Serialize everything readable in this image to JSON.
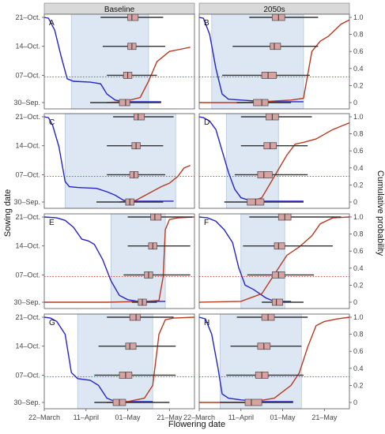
{
  "figure": {
    "xlabel": "Flowering date",
    "ylabel_left": "Sowing date",
    "ylabel_right": "Cumulative probability",
    "column_titles": [
      "Baseline",
      "2050s"
    ],
    "x_ticks": [
      "22–March",
      "11–April",
      "01–May",
      "21–May"
    ],
    "y_ticks_left": [
      "30–Sep.",
      "07–Oct.",
      "14–Oct.",
      "21–Oct."
    ],
    "y_ticks_right": [
      "0",
      "0.2",
      "0.4",
      "0.6",
      "0.8",
      "1.0"
    ],
    "colors": {
      "shade": "#dde7f3",
      "shade_border": "#b7c7dd",
      "decline": "#2424c8",
      "rise": "#b83a20",
      "threshold": "#cc3a2a",
      "box_fill": "#d7a2a2",
      "whisker": "#333333",
      "strip": "#d9d9d9"
    }
  },
  "chart_data": [
    {
      "type": "box+line",
      "panel": "A",
      "column": "Baseline",
      "x_unit": "days after 22 March",
      "shade": [
        13,
        50
      ],
      "threshold_y": 0.3,
      "boxes": [
        {
          "sowing": "21–Oct.",
          "whisker": [
            27,
            57
          ],
          "q1": 40,
          "median": 42,
          "q3": 45
        },
        {
          "sowing": "14–Oct.",
          "whisker": [
            28,
            58
          ],
          "q1": 40,
          "median": 42,
          "q3": 44
        },
        {
          "sowing": "07–Oct.",
          "whisker": [
            30,
            54
          ],
          "q1": 38,
          "median": 40,
          "q3": 42
        },
        {
          "sowing": "30–Sep.",
          "whisker": [
            22,
            56
          ],
          "q1": 36,
          "median": 39,
          "q3": 41
        }
      ],
      "decline": [
        [
          0,
          1.0
        ],
        [
          2,
          0.99
        ],
        [
          5,
          0.85
        ],
        [
          8,
          0.55
        ],
        [
          11,
          0.28
        ],
        [
          14,
          0.25
        ],
        [
          22,
          0.24
        ],
        [
          27,
          0.22
        ],
        [
          30,
          0.1
        ],
        [
          34,
          0.03
        ],
        [
          38,
          0.01
        ],
        [
          56,
          0.01
        ]
      ],
      "rise": [
        [
          30,
          0
        ],
        [
          38,
          0.01
        ],
        [
          46,
          0.06
        ],
        [
          50,
          0.25
        ],
        [
          54,
          0.48
        ],
        [
          60,
          0.6
        ],
        [
          66,
          0.63
        ],
        [
          70,
          0.65
        ]
      ]
    },
    {
      "type": "box+line",
      "panel": "B",
      "column": "2050s",
      "x_unit": "days after 22 March",
      "shade": [
        6,
        50
      ],
      "threshold_y": 0.3,
      "boxes": [
        {
          "sowing": "21–Oct.",
          "whisker": [
            24,
            57
          ],
          "q1": 35,
          "median": 38,
          "q3": 41
        },
        {
          "sowing": "14–Oct.",
          "whisker": [
            16,
            57
          ],
          "q1": 34,
          "median": 36,
          "q3": 39
        },
        {
          "sowing": "07–Oct.",
          "whisker": [
            11,
            53
          ],
          "q1": 30,
          "median": 33,
          "q3": 37
        },
        {
          "sowing": "30–Sep.",
          "whisker": [
            18,
            44
          ],
          "q1": 26,
          "median": 30,
          "q3": 33
        }
      ],
      "decline": [
        [
          0,
          1.0
        ],
        [
          2,
          0.99
        ],
        [
          5,
          0.8
        ],
        [
          8,
          0.4
        ],
        [
          11,
          0.1
        ],
        [
          14,
          0.04
        ],
        [
          20,
          0.03
        ],
        [
          26,
          0.02
        ],
        [
          32,
          0.01
        ],
        [
          50,
          0.01
        ]
      ],
      "rise": [
        [
          0,
          0
        ],
        [
          20,
          0
        ],
        [
          30,
          0.01
        ],
        [
          44,
          0.03
        ],
        [
          50,
          0.05
        ],
        [
          54,
          0.6
        ],
        [
          58,
          0.72
        ],
        [
          62,
          0.78
        ],
        [
          68,
          0.92
        ],
        [
          72,
          0.97
        ]
      ]
    },
    {
      "type": "box+line",
      "panel": "C",
      "column": "Baseline",
      "x_unit": "days after 22 March",
      "shade": [
        10,
        63
      ],
      "threshold_y": 0.3,
      "boxes": [
        {
          "sowing": "21–Oct.",
          "whisker": [
            33,
            62
          ],
          "q1": 43,
          "median": 45,
          "q3": 48
        },
        {
          "sowing": "14–Oct.",
          "whisker": [
            30,
            57
          ],
          "q1": 42,
          "median": 44,
          "q3": 46
        },
        {
          "sowing": "07–Oct.",
          "whisker": [
            30,
            58
          ],
          "q1": 41,
          "median": 43,
          "q3": 45
        },
        {
          "sowing": "30–Sep.",
          "whisker": [
            25,
            57
          ],
          "q1": 39,
          "median": 41,
          "q3": 43
        }
      ],
      "decline": [
        [
          0,
          1.0
        ],
        [
          2,
          0.99
        ],
        [
          4,
          0.9
        ],
        [
          7,
          0.65
        ],
        [
          10,
          0.24
        ],
        [
          12,
          0.18
        ],
        [
          16,
          0.17
        ],
        [
          25,
          0.16
        ],
        [
          30,
          0.12
        ],
        [
          34,
          0.08
        ],
        [
          38,
          0.02
        ],
        [
          42,
          0.01
        ],
        [
          62,
          0.01
        ]
      ],
      "rise": [
        [
          36,
          0
        ],
        [
          44,
          0.02
        ],
        [
          50,
          0.1
        ],
        [
          56,
          0.18
        ],
        [
          60,
          0.22
        ],
        [
          64,
          0.3
        ],
        [
          67,
          0.4
        ],
        [
          70,
          0.43
        ]
      ]
    },
    {
      "type": "box+line",
      "panel": "D",
      "column": "2050s",
      "x_unit": "days after 22 March",
      "shade": [
        13,
        38
      ],
      "threshold_y": 0.3,
      "boxes": [
        {
          "sowing": "21–Oct.",
          "whisker": [
            20,
            54
          ],
          "q1": 32,
          "median": 35,
          "q3": 38
        },
        {
          "sowing": "14–Oct.",
          "whisker": [
            20,
            52
          ],
          "q1": 31,
          "median": 34,
          "q3": 37
        },
        {
          "sowing": "07–Oct.",
          "whisker": [
            17,
            52
          ],
          "q1": 28,
          "median": 31,
          "q3": 35
        },
        {
          "sowing": "30–Sep.",
          "whisker": [
            12,
            50
          ],
          "q1": 23,
          "median": 27,
          "q3": 31
        }
      ],
      "decline": [
        [
          0,
          1.0
        ],
        [
          2,
          0.99
        ],
        [
          5,
          0.95
        ],
        [
          8,
          0.85
        ],
        [
          11,
          0.6
        ],
        [
          14,
          0.35
        ],
        [
          17,
          0.15
        ],
        [
          20,
          0.05
        ],
        [
          24,
          0.02
        ],
        [
          30,
          0.01
        ],
        [
          50,
          0.01
        ]
      ],
      "rise": [
        [
          24,
          0
        ],
        [
          30,
          0.05
        ],
        [
          36,
          0.3
        ],
        [
          42,
          0.55
        ],
        [
          46,
          0.68
        ],
        [
          50,
          0.7
        ],
        [
          56,
          0.74
        ],
        [
          64,
          0.85
        ],
        [
          72,
          0.93
        ]
      ]
    },
    {
      "type": "box+line",
      "panel": "E",
      "column": "Baseline",
      "x_unit": "days after 22 March",
      "shade": [
        32,
        58
      ],
      "threshold_y": 0.3,
      "boxes": [
        {
          "sowing": "21–Oct.",
          "whisker": [
            40,
            71
          ],
          "q1": 51,
          "median": 53,
          "q3": 56
        },
        {
          "sowing": "14–Oct.",
          "whisker": [
            40,
            70
          ],
          "q1": 50,
          "median": 52,
          "q3": 54
        },
        {
          "sowing": "07–Oct.",
          "whisker": [
            38,
            70
          ],
          "q1": 48,
          "median": 50,
          "q3": 52
        },
        {
          "sowing": "30–Sep.",
          "whisker": [
            42,
            54
          ],
          "q1": 45,
          "median": 47,
          "q3": 49
        }
      ],
      "decline": [
        [
          0,
          1.0
        ],
        [
          6,
          0.99
        ],
        [
          10,
          0.96
        ],
        [
          14,
          0.88
        ],
        [
          18,
          0.74
        ],
        [
          21,
          0.72
        ],
        [
          24,
          0.68
        ],
        [
          28,
          0.5
        ],
        [
          32,
          0.25
        ],
        [
          36,
          0.08
        ],
        [
          40,
          0.03
        ],
        [
          45,
          0.01
        ],
        [
          58,
          0.01
        ]
      ],
      "rise": [
        [
          0,
          0
        ],
        [
          30,
          0
        ],
        [
          48,
          0.01
        ],
        [
          55,
          0.02
        ],
        [
          57,
          0.3
        ],
        [
          58,
          0.85
        ],
        [
          60,
          0.97
        ],
        [
          64,
          0.99
        ],
        [
          72,
          1.0
        ]
      ]
    },
    {
      "type": "box+line",
      "panel": "F",
      "column": "2050s",
      "x_unit": "days after 22 March",
      "shade": [
        20,
        41
      ],
      "threshold_y": 0.3,
      "boxes": [
        {
          "sowing": "21–Oct.",
          "whisker": [
            24,
            68
          ],
          "q1": 38,
          "median": 41,
          "q3": 44
        },
        {
          "sowing": "14–Oct.",
          "whisker": [
            21,
            64
          ],
          "q1": 36,
          "median": 38,
          "q3": 41
        },
        {
          "sowing": "07–Oct.",
          "whisker": [
            23,
            55
          ],
          "q1": 35,
          "median": 38,
          "q3": 41
        },
        {
          "sowing": "30–Sep.",
          "whisker": [
            30,
            50
          ],
          "q1": 35,
          "median": 37,
          "q3": 40
        }
      ],
      "decline": [
        [
          0,
          1.0
        ],
        [
          4,
          0.99
        ],
        [
          8,
          0.95
        ],
        [
          12,
          0.85
        ],
        [
          16,
          0.7
        ],
        [
          19,
          0.4
        ],
        [
          22,
          0.2
        ],
        [
          26,
          0.15
        ],
        [
          32,
          0.05
        ],
        [
          36,
          0.01
        ],
        [
          44,
          0.01
        ]
      ],
      "rise": [
        [
          0,
          0
        ],
        [
          20,
          0.01
        ],
        [
          30,
          0.1
        ],
        [
          34,
          0.25
        ],
        [
          38,
          0.4
        ],
        [
          42,
          0.55
        ],
        [
          48,
          0.65
        ],
        [
          54,
          0.78
        ],
        [
          58,
          0.92
        ],
        [
          64,
          0.99
        ],
        [
          72,
          1.0
        ]
      ]
    },
    {
      "type": "box+line",
      "panel": "G",
      "column": "Baseline",
      "x_unit": "days after 22 March",
      "shade": [
        16,
        52
      ],
      "threshold_y": 0.3,
      "boxes": [
        {
          "sowing": "21–Oct.",
          "whisker": [
            30,
            62
          ],
          "q1": 41,
          "median": 44,
          "q3": 46
        },
        {
          "sowing": "14–Oct.",
          "whisker": [
            26,
            63
          ],
          "q1": 39,
          "median": 41,
          "q3": 44
        },
        {
          "sowing": "07–Oct.",
          "whisker": [
            24,
            63
          ],
          "q1": 36,
          "median": 39,
          "q3": 42
        },
        {
          "sowing": "30–Sep.",
          "whisker": [
            24,
            60
          ],
          "q1": 33,
          "median": 36,
          "q3": 39
        }
      ],
      "decline": [
        [
          0,
          1.0
        ],
        [
          3,
          0.99
        ],
        [
          6,
          0.95
        ],
        [
          10,
          0.8
        ],
        [
          13,
          0.35
        ],
        [
          16,
          0.28
        ],
        [
          22,
          0.26
        ],
        [
          26,
          0.2
        ],
        [
          30,
          0.05
        ],
        [
          34,
          0.01
        ],
        [
          52,
          0.01
        ]
      ],
      "rise": [
        [
          30,
          0
        ],
        [
          40,
          0.01
        ],
        [
          48,
          0.05
        ],
        [
          52,
          0.2
        ],
        [
          55,
          0.8
        ],
        [
          58,
          0.97
        ],
        [
          62,
          0.99
        ],
        [
          72,
          1.0
        ]
      ]
    },
    {
      "type": "box+line",
      "panel": "H",
      "column": "2050s",
      "x_unit": "days after 22 March",
      "shade": [
        10,
        49
      ],
      "threshold_y": 0.3,
      "boxes": [
        {
          "sowing": "21–Oct.",
          "whisker": [
            18,
            52
          ],
          "q1": 30,
          "median": 33,
          "q3": 36
        },
        {
          "sowing": "14–Oct.",
          "whisker": [
            15,
            49
          ],
          "q1": 28,
          "median": 31,
          "q3": 34
        },
        {
          "sowing": "07–Oct.",
          "whisker": [
            13,
            50
          ],
          "q1": 27,
          "median": 30,
          "q3": 33
        },
        {
          "sowing": "30–Sep.",
          "whisker": [
            10,
            45
          ],
          "q1": 22,
          "median": 25,
          "q3": 30
        }
      ],
      "decline": [
        [
          0,
          1.0
        ],
        [
          3,
          0.98
        ],
        [
          6,
          0.8
        ],
        [
          9,
          0.4
        ],
        [
          11,
          0.1
        ],
        [
          14,
          0.05
        ],
        [
          20,
          0.03
        ],
        [
          30,
          0.01
        ],
        [
          45,
          0.01
        ]
      ],
      "rise": [
        [
          0,
          0
        ],
        [
          24,
          0
        ],
        [
          36,
          0.05
        ],
        [
          44,
          0.2
        ],
        [
          48,
          0.35
        ],
        [
          52,
          0.65
        ],
        [
          56,
          0.9
        ],
        [
          60,
          0.95
        ],
        [
          66,
          0.98
        ],
        [
          72,
          1.0
        ]
      ]
    }
  ]
}
